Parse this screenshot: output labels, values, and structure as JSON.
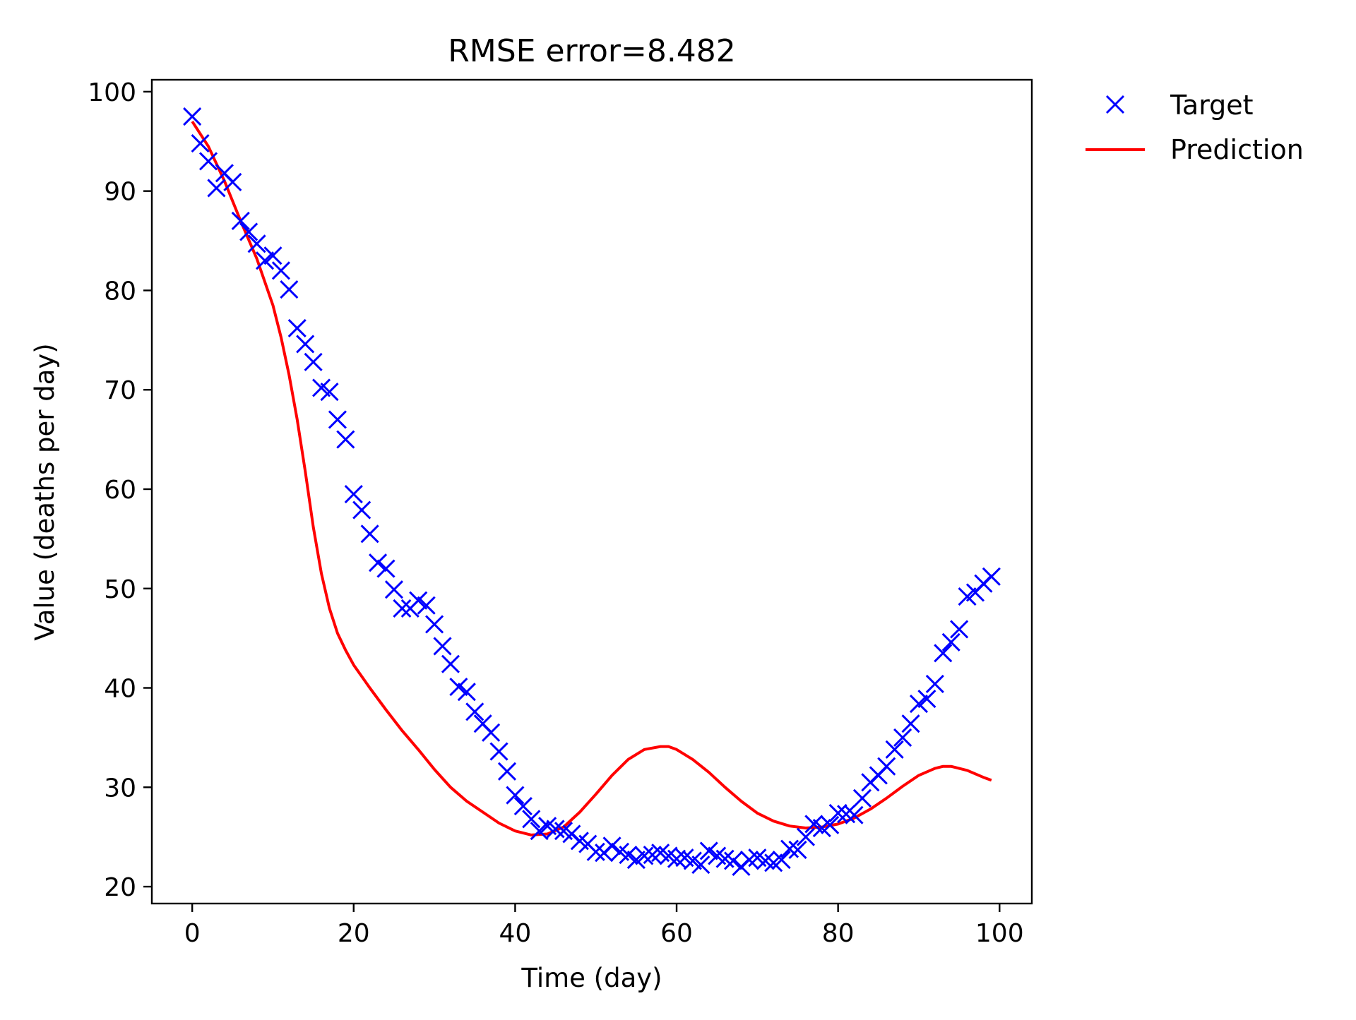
{
  "chart_data": {
    "type": "scatter+line",
    "title": "RMSE error=8.482",
    "xlabel": "Time (day)",
    "ylabel": "Value (deaths per day)",
    "xlim": [
      -5,
      104
    ],
    "ylim": [
      18.3,
      101.2
    ],
    "xticks": [
      0,
      20,
      40,
      60,
      80,
      100
    ],
    "yticks": [
      20,
      30,
      40,
      50,
      60,
      70,
      80,
      90,
      100
    ],
    "grid": false,
    "legend_position": "outside-top-right",
    "series": [
      {
        "name": "Target",
        "kind": "scatter",
        "marker": "x",
        "color": "#0000ff",
        "x": [
          0,
          1,
          2,
          3,
          4,
          5,
          6,
          7,
          8,
          9,
          10,
          11,
          12,
          13,
          14,
          15,
          16,
          17,
          18,
          19,
          20,
          21,
          22,
          23,
          24,
          25,
          26,
          27,
          28,
          29,
          30,
          31,
          32,
          33,
          34,
          35,
          36,
          37,
          38,
          39,
          40,
          41,
          42,
          43,
          44,
          45,
          46,
          47,
          48,
          49,
          50,
          51,
          52,
          53,
          54,
          55,
          56,
          57,
          58,
          59,
          60,
          61,
          62,
          63,
          64,
          65,
          66,
          67,
          68,
          69,
          70,
          71,
          72,
          73,
          74,
          75,
          76,
          77,
          78,
          79,
          80,
          81,
          82,
          83,
          84,
          85,
          86,
          87,
          88,
          89,
          90,
          91,
          92,
          93,
          94,
          95,
          96,
          97,
          98,
          99
        ],
        "y": [
          97.5,
          94.8,
          93.0,
          90.3,
          91.8,
          90.9,
          87.0,
          85.9,
          84.7,
          83.0,
          83.5,
          82.0,
          80.1,
          76.2,
          74.6,
          72.8,
          70.2,
          69.8,
          67.0,
          65.0,
          59.5,
          57.9,
          55.5,
          52.6,
          52.0,
          49.9,
          48.0,
          48.0,
          48.8,
          48.3,
          46.4,
          44.2,
          42.4,
          40.1,
          39.6,
          37.6,
          36.4,
          35.5,
          33.6,
          31.6,
          29.2,
          28.1,
          26.8,
          25.6,
          26.1,
          25.8,
          25.6,
          25.3,
          24.6,
          24.3,
          23.5,
          23.4,
          24.1,
          23.5,
          23.2,
          22.7,
          23.1,
          23.2,
          23.4,
          23.1,
          22.8,
          22.9,
          22.6,
          22.2,
          23.6,
          23.1,
          22.8,
          22.6,
          22.0,
          22.7,
          22.9,
          22.6,
          22.4,
          22.7,
          23.8,
          23.7,
          25.0,
          26.3,
          25.9,
          26.2,
          27.4,
          27.3,
          27.2,
          28.9,
          30.5,
          31.2,
          32.1,
          33.8,
          35.0,
          36.4,
          38.4,
          38.9,
          40.4,
          43.5,
          44.6,
          45.9,
          49.2,
          49.6,
          50.5,
          51.2
        ]
      },
      {
        "name": "Prediction",
        "kind": "line",
        "color": "#ff0000",
        "x": [
          0,
          2,
          4,
          6,
          8,
          10,
          11,
          12,
          13,
          14,
          15,
          16,
          17,
          18,
          19,
          20,
          22,
          24,
          26,
          28,
          30,
          32,
          34,
          36,
          38,
          40,
          42,
          44,
          46,
          48,
          50,
          52,
          54,
          56,
          58,
          59,
          60,
          62,
          64,
          66,
          68,
          70,
          72,
          74,
          76,
          78,
          80,
          82,
          84,
          86,
          88,
          90,
          92,
          93,
          94,
          96,
          98,
          99
        ],
        "y": [
          97.0,
          94.5,
          91.0,
          87.0,
          83.2,
          78.5,
          75.3,
          71.5,
          67.0,
          61.8,
          56.2,
          51.5,
          48.0,
          45.5,
          43.8,
          42.3,
          40.0,
          37.8,
          35.7,
          33.8,
          31.8,
          30.0,
          28.6,
          27.5,
          26.4,
          25.6,
          25.2,
          25.3,
          26.0,
          27.5,
          29.3,
          31.2,
          32.8,
          33.8,
          34.1,
          34.1,
          33.8,
          32.8,
          31.5,
          30.0,
          28.6,
          27.4,
          26.6,
          26.1,
          25.9,
          26.0,
          26.3,
          26.9,
          27.8,
          28.9,
          30.1,
          31.2,
          31.9,
          32.1,
          32.1,
          31.7,
          31.0,
          30.7
        ]
      }
    ]
  }
}
